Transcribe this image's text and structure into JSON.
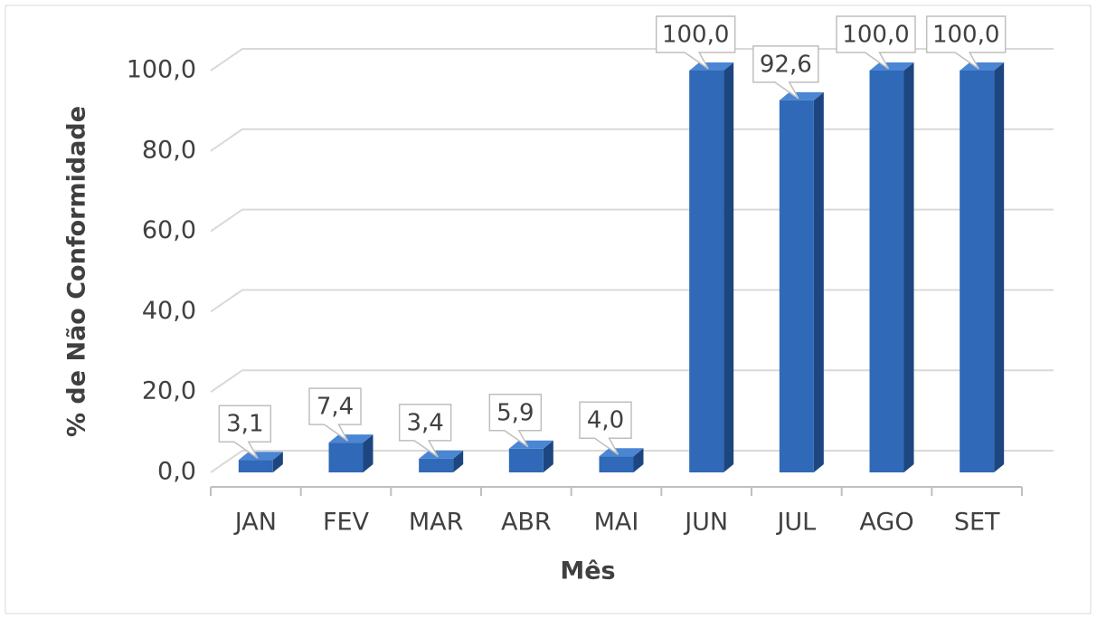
{
  "chart_data": {
    "type": "bar",
    "x_label": "Mês",
    "y_label": "% de Não Conformidade",
    "categories": [
      "JAN",
      "FEV",
      "MAR",
      "ABR",
      "MAI",
      "JUN",
      "JUL",
      "AGO",
      "SET"
    ],
    "values": [
      3.1,
      7.4,
      3.4,
      5.9,
      4.0,
      100,
      92.6,
      100,
      100
    ],
    "value_labels": [
      "3,1",
      "7,4",
      "3,4",
      "5,9",
      "4,0",
      "100,0",
      "92,6",
      "100,0",
      "100,0"
    ],
    "color": "#2f69b8",
    "ylim": [
      0,
      100
    ],
    "yticks": [
      {
        "value": 0,
        "label": "0,0"
      },
      {
        "value": 20,
        "label": "20,0"
      },
      {
        "value": 40,
        "label": "40,0"
      },
      {
        "value": 60,
        "label": "60,0"
      },
      {
        "value": 80,
        "label": "80,0"
      },
      {
        "value": 100,
        "label": "100,0"
      }
    ],
    "grid": true
  }
}
